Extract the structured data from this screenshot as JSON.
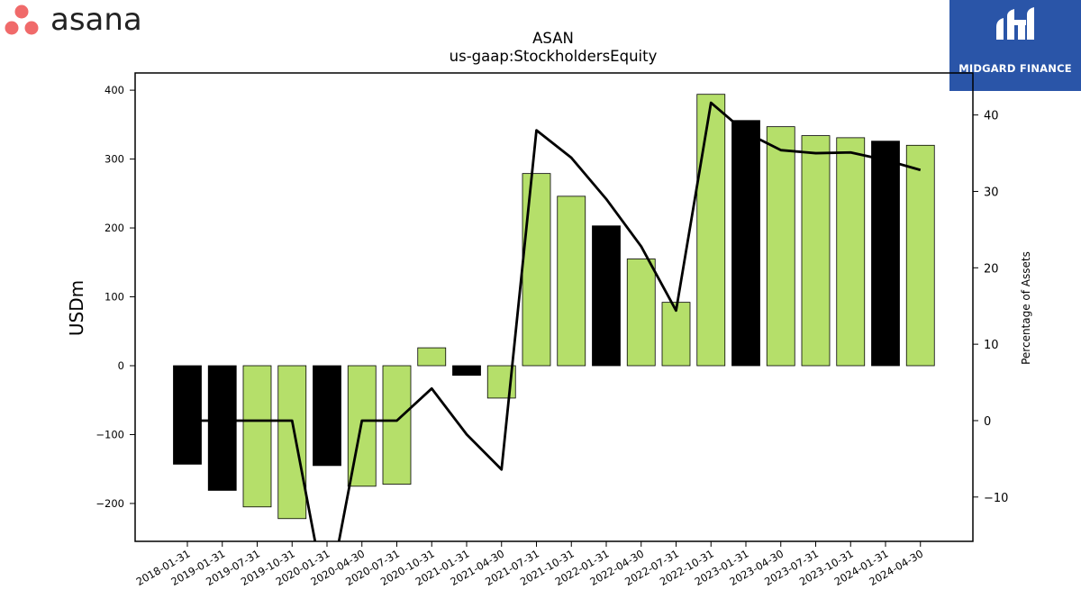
{
  "branding": {
    "logo_text": "asana",
    "logo_icon": "asana-dots-icon",
    "logo_color": "#f06a6a",
    "badge_text": "MIDGARD FINANCE",
    "badge_icon": "midgard-finance-logo-icon",
    "badge_color": "#2a55a8"
  },
  "chart_data": {
    "type": "bar",
    "title": "ASAN",
    "subtitle": "us-gaap:StockholdersEquity",
    "ylabel": "USDm",
    "y2label": "Percentage of Assets",
    "ylim": [
      -255,
      425
    ],
    "y2lim": [
      -15.8,
      45.5
    ],
    "yticks": [
      -200,
      -100,
      0,
      100,
      200,
      300,
      400
    ],
    "y2ticks": [
      -10,
      0,
      10,
      20,
      30,
      40
    ],
    "categories": [
      "2018-01-31",
      "2019-01-31",
      "2019-07-31",
      "2019-10-31",
      "2020-01-31",
      "2020-04-30",
      "2020-07-31",
      "2020-10-31",
      "2021-01-31",
      "2021-04-30",
      "2021-07-31",
      "2021-10-31",
      "2022-01-31",
      "2022-04-30",
      "2022-07-31",
      "2022-10-31",
      "2023-01-31",
      "2023-04-30",
      "2023-07-31",
      "2023-10-31",
      "2024-01-31",
      "2024-04-30"
    ],
    "series": [
      {
        "type": "bar",
        "values": [
          -143,
          -181,
          -205,
          -222,
          -145,
          -175,
          -172,
          26,
          -14,
          -47,
          279,
          246,
          203,
          155,
          92,
          394,
          356,
          347,
          334,
          331,
          326,
          320
        ]
      },
      {
        "type": "line",
        "axis": "right",
        "values": [
          0,
          0,
          0,
          0,
          -24,
          0,
          0,
          4.2,
          -1.8,
          -6.4,
          38.0,
          34.4,
          29.0,
          22.8,
          14.4,
          41.6,
          37.7,
          35.4,
          35.0,
          35.1,
          34.1,
          32.8
        ]
      }
    ],
    "highlight_categories": [
      "2018-01-31",
      "2019-01-31",
      "2020-01-31",
      "2021-01-31",
      "2022-01-31",
      "2023-01-31",
      "2024-01-31"
    ],
    "bar_color": "#b5df6a",
    "highlight_color": "#000000",
    "line_color": "#000000",
    "grid": false,
    "legend": "none"
  }
}
